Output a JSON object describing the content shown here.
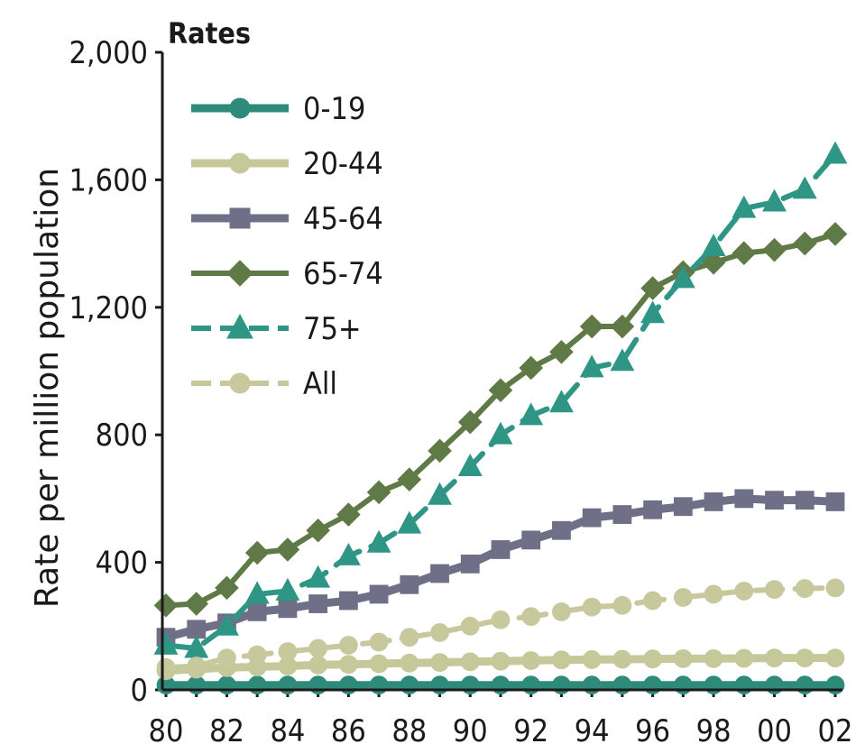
{
  "chart_data": {
    "type": "line",
    "title": "Rates",
    "ylabel": "Rate per million population",
    "xlabel": "",
    "ylim": [
      0,
      2000
    ],
    "yticks": [
      "0",
      "400",
      "800",
      "1,200",
      "1,600",
      "2,000"
    ],
    "ytick_values": [
      0,
      400,
      800,
      1200,
      1600,
      2000
    ],
    "xtick_labels": [
      "80",
      "82",
      "84",
      "86",
      "88",
      "90",
      "92",
      "94",
      "96",
      "98",
      "00",
      "02"
    ],
    "x": [
      1980,
      1981,
      1982,
      1983,
      1984,
      1985,
      1986,
      1987,
      1988,
      1989,
      1990,
      1991,
      1992,
      1993,
      1994,
      1995,
      1996,
      1997,
      1998,
      1999,
      2000,
      2001,
      2002
    ],
    "legend_position": "top-left",
    "series": [
      {
        "name": "0-19",
        "color": "#2e8b7a",
        "marker": "circle",
        "dashed": false,
        "values": [
          15,
          15,
          15,
          15,
          15,
          15,
          15,
          15,
          15,
          15,
          15,
          15,
          15,
          15,
          15,
          15,
          15,
          15,
          15,
          15,
          15,
          15,
          15
        ]
      },
      {
        "name": "20-44",
        "color": "#c5c99a",
        "marker": "circle",
        "dashed": false,
        "values": [
          60,
          65,
          70,
          72,
          75,
          78,
          80,
          82,
          84,
          86,
          88,
          90,
          92,
          94,
          95,
          96,
          97,
          98,
          98,
          99,
          100,
          100,
          100
        ]
      },
      {
        "name": "45-64",
        "color": "#6f6f88",
        "marker": "square",
        "dashed": false,
        "values": [
          165,
          190,
          210,
          245,
          255,
          270,
          280,
          300,
          330,
          365,
          395,
          440,
          470,
          500,
          540,
          550,
          565,
          575,
          590,
          600,
          595,
          595,
          590
        ]
      },
      {
        "name": "65-74",
        "color": "#5f7a46",
        "marker": "diamond",
        "dashed": false,
        "values": [
          265,
          270,
          320,
          430,
          440,
          500,
          550,
          620,
          660,
          750,
          840,
          940,
          1010,
          1060,
          1140,
          1140,
          1260,
          1310,
          1340,
          1370,
          1380,
          1400,
          1430
        ]
      },
      {
        "name": "75+",
        "color": "#2f9686",
        "marker": "triangle",
        "dashed": true,
        "values": [
          140,
          130,
          200,
          300,
          310,
          350,
          420,
          460,
          520,
          610,
          700,
          800,
          860,
          900,
          1010,
          1030,
          1180,
          1290,
          1390,
          1510,
          1530,
          1570,
          1680
        ]
      },
      {
        "name": "All",
        "color": "#c7c99c",
        "marker": "circle",
        "dashed": true,
        "values": [
          70,
          75,
          100,
          110,
          120,
          130,
          140,
          150,
          165,
          180,
          200,
          220,
          230,
          245,
          260,
          265,
          280,
          290,
          300,
          310,
          315,
          318,
          320
        ]
      }
    ]
  }
}
